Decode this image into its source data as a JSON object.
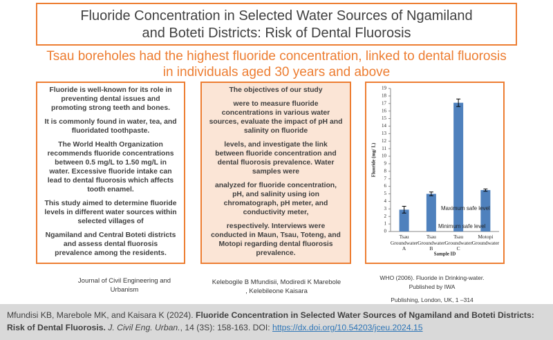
{
  "header": {
    "title": "Fluoride Concentration in Selected Water Sources of Ngamiland and Boteti Districts: Risk of Dental Fluorosis",
    "finding": "Tsau boreholes had the highest fluoride concentration, linked to dental fluorosis in individuals aged 30 years and above"
  },
  "intro": [
    "Fluoride is well-known for its role in preventing dental issues and promoting strong teeth and bones.",
    "It is commonly found in water, tea, and fluoridated toothpaste.",
    "The World Health Organization recommends fluoride concentrations between 0.5 mg/L to 1.50 mg/L in water. Excessive fluoride intake can lead to dental fluorosis which affects tooth enamel.",
    "This study aimed to determine fluoride levels in different water sources within selected villages of",
    "Ngamiland and Central Boteti districts and assess dental fluorosis prevalence among the residents."
  ],
  "methods": [
    "The objectives of our study",
    "were to measure fluoride concentrations in various water sources, evaluate the impact of pH and salinity on fluoride",
    "levels, and investigate the link between fluoride concentration and dental fluorosis prevalence. Water samples were",
    "analyzed for fluoride concentration, pH, and salinity using ion chromatograph, pH meter, and conductivity meter,",
    "respectively. Interviews were conducted in Maun, Tsau, Toteng, and Motopi regarding dental fluorosis prevalence."
  ],
  "chart_data": {
    "type": "bar",
    "y_label": "Fluoride (mg/ L)",
    "x_label": "Sample ID",
    "categories": [
      "Tsau Groundwater A",
      "Tsau Groundwater B",
      "Tsau Groundwater C",
      "Motopi Groundwater"
    ],
    "values": [
      2.9,
      5.0,
      17.1,
      5.5
    ],
    "errors": [
      0.45,
      0.25,
      0.5,
      0.15
    ],
    "color": "#4f81bd",
    "ylim": [
      0,
      19
    ],
    "yticks": [
      0,
      1,
      2,
      3,
      4,
      5,
      6,
      7,
      8,
      9,
      10,
      11,
      12,
      13,
      14,
      15,
      16,
      17,
      18,
      19
    ],
    "annotations": [
      "Maximum safe level",
      "Minimum safe level"
    ]
  },
  "references": {
    "journal": "Journal of Civil Engineering and Urbanism",
    "authors": "Kelebogile B Mfundisii,  Modiredi K Marebole ,  Kelebileone Kaisara",
    "who": [
      "WHO (2006). Fluoride in Drinking-water.",
      "Published by IWA",
      "Publishing, London, UK, 1 –314"
    ]
  },
  "citation": {
    "authors": "Mfundisi KB, Marebole MK, and Kaisara K (2024). ",
    "title": "Fluoride Concentration in Selected Water Sources of Ngamiland and Boteti Districts: Risk of Dental Fluorosis.",
    "journal": "J. Civil Eng. Urban.",
    "details": ", 14 (3S): 158-163. DOI: ",
    "doi": "https://dx.doi.org/10.54203/jceu.2024.15"
  }
}
